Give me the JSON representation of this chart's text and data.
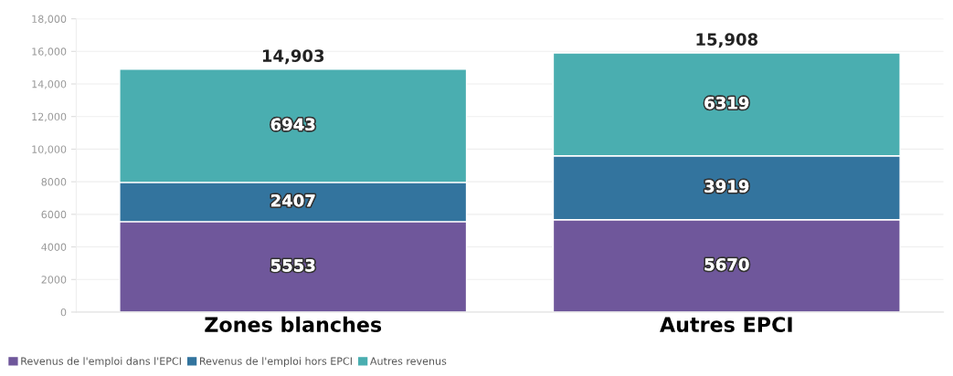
{
  "chart_data": {
    "type": "bar",
    "stacked": true,
    "categories": [
      "Zones blanches",
      "Autres EPCI"
    ],
    "series": [
      {
        "name": "Revenus de l'emploi dans l'EPCI",
        "color": "#6f579b",
        "values": [
          5553,
          5670
        ]
      },
      {
        "name": "Revenus de l'emploi hors EPCI",
        "color": "#33749e",
        "values": [
          2407,
          3919
        ]
      },
      {
        "name": "Autres revenus",
        "color": "#4aaeb0",
        "values": [
          6943,
          6319
        ]
      }
    ],
    "totals": [
      "14,903",
      "15,908"
    ],
    "data_labels": true,
    "ylim": [
      0,
      18000
    ],
    "yticks": [
      0,
      2000,
      4000,
      6000,
      8000,
      {
        "value": 10000,
        "label": "10,000"
      },
      {
        "value": 12000,
        "label": "12,000"
      },
      {
        "value": 14000,
        "label": "14,000"
      },
      {
        "value": 16000,
        "label": "16,000"
      },
      {
        "value": 18000,
        "label": "18,000"
      }
    ],
    "grid": "y",
    "legend": "bottom"
  }
}
